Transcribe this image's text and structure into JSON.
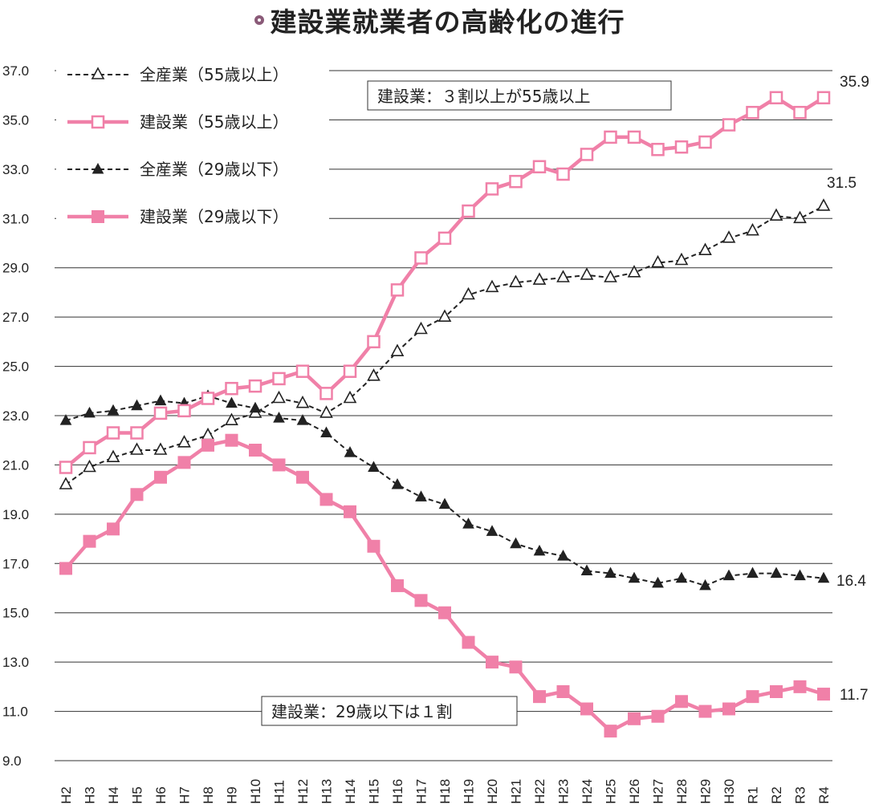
{
  "title": "建設業就業者の高齢化の進行",
  "chart_data": {
    "type": "line",
    "title": "建設業就業者の高齢化の進行",
    "xlabel": "",
    "ylabel": "",
    "ylim": [
      9.0,
      37.0
    ],
    "yticks": [
      "37.0",
      "35.0",
      "33.0",
      "31.0",
      "29.0",
      "27.0",
      "25.0",
      "23.0",
      "21.0",
      "19.0",
      "17.0",
      "15.0",
      "13.0",
      "11.0",
      "9.0"
    ],
    "grid": true,
    "legend_position": "top-left",
    "categories": [
      "H2",
      "H3",
      "H4",
      "H5",
      "H6",
      "H7",
      "H8",
      "H9",
      "H10",
      "H11",
      "H12",
      "H13",
      "H14",
      "H15",
      "H16",
      "H17",
      "H18",
      "H19",
      "H20",
      "H21",
      "H22",
      "H23",
      "H24",
      "H25",
      "H26",
      "H27",
      "H28",
      "H29",
      "H30",
      "R1",
      "R2",
      "R3",
      "R4"
    ],
    "series": [
      {
        "name": "全産業（55歳以上）",
        "color": "#222222",
        "style": "dashed",
        "marker": "open-triangle",
        "values": [
          20.2,
          20.9,
          21.3,
          21.6,
          21.6,
          21.9,
          22.2,
          22.8,
          23.1,
          23.7,
          23.5,
          23.1,
          23.7,
          24.6,
          25.6,
          26.5,
          27.0,
          27.9,
          28.2,
          28.4,
          28.5,
          28.6,
          28.7,
          28.6,
          28.8,
          29.2,
          29.3,
          29.7,
          30.2,
          30.5,
          31.1,
          31.0,
          31.5
        ]
      },
      {
        "name": "建設業（55歳以上）",
        "color": "#f080a8",
        "style": "solid",
        "marker": "open-square",
        "values": [
          20.9,
          21.7,
          22.3,
          22.3,
          23.1,
          23.2,
          23.7,
          24.1,
          24.2,
          24.5,
          24.8,
          23.9,
          24.8,
          26.0,
          28.1,
          29.4,
          30.2,
          31.3,
          32.2,
          32.5,
          33.1,
          32.8,
          33.6,
          34.3,
          34.3,
          33.8,
          33.9,
          34.1,
          34.8,
          35.3,
          35.9,
          35.3,
          35.9
        ]
      },
      {
        "name": "全産業（29歳以下）",
        "color": "#222222",
        "style": "dashed",
        "marker": "filled-triangle",
        "values": [
          22.8,
          23.1,
          23.2,
          23.4,
          23.6,
          23.5,
          23.8,
          23.5,
          23.3,
          22.9,
          22.8,
          22.3,
          21.5,
          20.9,
          20.2,
          19.7,
          19.4,
          18.6,
          18.3,
          17.8,
          17.5,
          17.3,
          16.7,
          16.6,
          16.4,
          16.2,
          16.4,
          16.1,
          16.5,
          16.6,
          16.6,
          16.5,
          16.4
        ]
      },
      {
        "name": "建設業（29歳以下）",
        "color": "#f080a8",
        "style": "solid",
        "marker": "filled-square",
        "values": [
          16.8,
          17.9,
          18.4,
          19.8,
          20.5,
          21.1,
          21.8,
          22.0,
          21.6,
          21.0,
          20.5,
          19.6,
          19.1,
          17.7,
          16.1,
          15.5,
          15.0,
          13.8,
          13.0,
          12.8,
          11.6,
          11.8,
          11.1,
          10.2,
          10.7,
          10.8,
          11.4,
          11.0,
          11.1,
          11.6,
          11.8,
          12.0,
          11.7
        ]
      }
    ],
    "end_labels": [
      "35.9",
      "31.5",
      "16.4",
      "11.7"
    ],
    "annotations": [
      "建設業：３割以上が55歳以上",
      "建設業：29歳以下は１割"
    ]
  }
}
